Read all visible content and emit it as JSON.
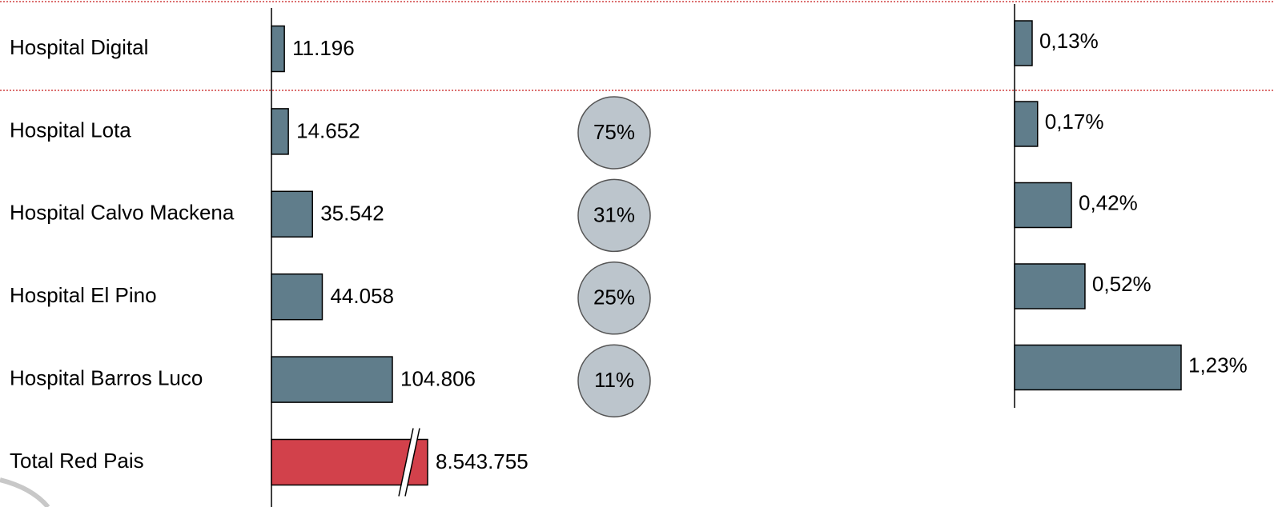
{
  "chart_data": [
    {
      "type": "bar",
      "categories": [
        "Hospital Digital",
        "Hospital Lota",
        "Hospital Calvo Mackena",
        "Hospital El Pino",
        "Hospital Barros Luco",
        "Total Red Pais"
      ],
      "values": [
        11196,
        14652,
        35542,
        44058,
        104806,
        8543755
      ],
      "value_labels": [
        "11.196",
        "14.652",
        "35.542",
        "44.058",
        "104.806",
        "8.543.755"
      ],
      "colors": [
        "#607d8b",
        "#607d8b",
        "#607d8b",
        "#607d8b",
        "#607d8b",
        "#d2414b"
      ]
    },
    {
      "type": "circle",
      "values": [
        75,
        31,
        25,
        11
      ],
      "value_labels": [
        "75%",
        "31%",
        "25%",
        "11%"
      ],
      "color": "#bcc5cc"
    },
    {
      "type": "bar",
      "values": [
        0.13,
        0.17,
        0.42,
        0.52,
        1.23
      ],
      "value_labels": [
        "0,13%",
        "0,17%",
        "0,42%",
        "0,52%",
        "1,23%"
      ],
      "color": "#607d8b"
    }
  ]
}
